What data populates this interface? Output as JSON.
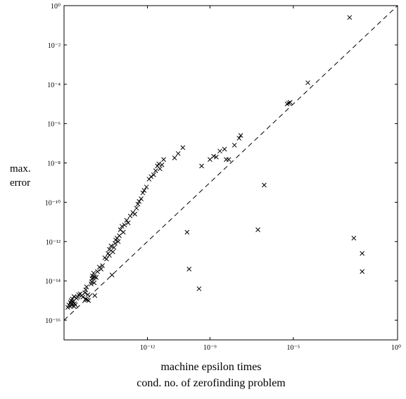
{
  "chart_data": {
    "type": "scatter",
    "title": "",
    "xlabel": [
      "machine epsilon times",
      "cond. no. of zerofinding problem"
    ],
    "ylabel": [
      "max.",
      "error"
    ],
    "xscale": "log",
    "yscale": "log",
    "xlim": [
      1e-16,
      1
    ],
    "ylim": [
      1e-17,
      1
    ],
    "grid": false,
    "legend": "none",
    "xticks": [
      {
        "value": 1e-12,
        "label": "10⁻¹²"
      },
      {
        "value": 1e-09,
        "label": "10⁻⁹"
      },
      {
        "value": 1e-05,
        "label": "10⁻⁵"
      },
      {
        "value": 1,
        "label": "10⁰"
      }
    ],
    "yticks": [
      {
        "value": 1,
        "label": "10⁰"
      },
      {
        "value": 0.01,
        "label": "10⁻²"
      },
      {
        "value": 0.0001,
        "label": "10⁻⁴"
      },
      {
        "value": 1e-06,
        "label": "10⁻⁶"
      },
      {
        "value": 1e-08,
        "label": "10⁻⁸"
      },
      {
        "value": 1e-10,
        "label": "10⁻¹⁰"
      },
      {
        "value": 1e-12,
        "label": "10⁻¹²"
      },
      {
        "value": 1e-14,
        "label": "10⁻¹⁴"
      },
      {
        "value": 1e-16,
        "label": "10⁻¹⁶"
      }
    ],
    "reference_line": {
      "style": "dashed",
      "x": [
        1e-16,
        1
      ],
      "y": [
        1e-16,
        1
      ]
    },
    "marker": "x",
    "color": "#000000",
    "points": [
      [
        1.5e-16,
        4.5e-16
      ],
      [
        1.7e-16,
        6e-16
      ],
      [
        2e-16,
        5e-16
      ],
      [
        2e-16,
        8e-16
      ],
      [
        2.2e-16,
        6e-16
      ],
      [
        2.2e-16,
        1e-15
      ],
      [
        2.5e-16,
        7e-16
      ],
      [
        2.5e-16,
        1.2e-15
      ],
      [
        2.7e-16,
        9e-16
      ],
      [
        3e-16,
        5e-16
      ],
      [
        3e-16,
        1.6e-15
      ],
      [
        3.2e-16,
        7e-16
      ],
      [
        3.5e-16,
        6e-16
      ],
      [
        4e-16,
        1.3e-15
      ],
      [
        4.5e-16,
        1.5e-15
      ],
      [
        5e-16,
        2e-15
      ],
      [
        6e-16,
        2.2e-15
      ],
      [
        7e-16,
        1.8e-15
      ],
      [
        8e-16,
        1.5e-15
      ],
      [
        1e-15,
        2.5e-15
      ],
      [
        1.1e-15,
        3.5e-15
      ],
      [
        1.1e-15,
        1.2e-15
      ],
      [
        1.2e-15,
        5e-15
      ],
      [
        1.3e-15,
        1.1e-15
      ],
      [
        1.4e-15,
        2e-15
      ],
      [
        1.5e-15,
        1e-15
      ],
      [
        2e-15,
        7e-15
      ],
      [
        2.1e-15,
        9e-15
      ],
      [
        2.2e-15,
        1.3e-14
      ],
      [
        2.3e-15,
        1.8e-14
      ],
      [
        2.5e-15,
        1.4e-14
      ],
      [
        2.6e-15,
        2.5e-14
      ],
      [
        2.8e-15,
        8e-15
      ],
      [
        2.9e-15,
        1.6e-14
      ],
      [
        3e-15,
        1.8e-15
      ],
      [
        3.5e-15,
        1.5e-14
      ],
      [
        4e-15,
        3e-14
      ],
      [
        5e-15,
        5e-14
      ],
      [
        6e-15,
        4e-14
      ],
      [
        7e-15,
        6e-14
      ],
      [
        9e-15,
        1.5e-13
      ],
      [
        1.1e-14,
        1.3e-13
      ],
      [
        1.3e-14,
        2.5e-13
      ],
      [
        1.5e-14,
        2e-13
      ],
      [
        1.5e-14,
        4e-13
      ],
      [
        1.8e-14,
        6e-13
      ],
      [
        2e-14,
        2e-14
      ],
      [
        2.2e-14,
        3e-13
      ],
      [
        2.5e-14,
        5e-13
      ],
      [
        2.8e-14,
        8e-13
      ],
      [
        3e-14,
        1.2e-12
      ],
      [
        3.5e-14,
        1.5e-12
      ],
      [
        4e-14,
        1e-12
      ],
      [
        4.5e-14,
        2e-12
      ],
      [
        5e-14,
        4e-12
      ],
      [
        6e-14,
        6e-12
      ],
      [
        7e-14,
        3e-12
      ],
      [
        8e-14,
        7e-12
      ],
      [
        1e-13,
        1.2e-11
      ],
      [
        1.2e-13,
        9e-12
      ],
      [
        1.5e-13,
        2e-11
      ],
      [
        2e-13,
        3e-11
      ],
      [
        2.5e-13,
        2.5e-11
      ],
      [
        3e-13,
        5e-11
      ],
      [
        3.5e-13,
        8e-11
      ],
      [
        4e-13,
        1.1e-10
      ],
      [
        5e-13,
        1.5e-10
      ],
      [
        6e-13,
        3e-10
      ],
      [
        7e-13,
        4e-10
      ],
      [
        9e-13,
        6e-10
      ],
      [
        1.2e-12,
        1.5e-09
      ],
      [
        1.5e-12,
        2e-09
      ],
      [
        2e-12,
        2.5e-09
      ],
      [
        2.5e-12,
        4e-09
      ],
      [
        3e-12,
        7e-09
      ],
      [
        3.5e-12,
        9e-09
      ],
      [
        4e-12,
        5e-09
      ],
      [
        5e-12,
        8e-09
      ],
      [
        6e-12,
        1.5e-08
      ],
      [
        2e-11,
        1.8e-08
      ],
      [
        3e-11,
        3e-08
      ],
      [
        5e-11,
        6e-08
      ],
      [
        1e-10,
        4e-14
      ],
      [
        8e-11,
        3e-12
      ],
      [
        3e-10,
        4e-15
      ],
      [
        4e-10,
        7e-09
      ],
      [
        1e-09,
        1.5e-08
      ],
      [
        1.5e-09,
        2.2e-08
      ],
      [
        2e-09,
        2e-08
      ],
      [
        3e-09,
        4e-08
      ],
      [
        5e-09,
        5e-08
      ],
      [
        6e-09,
        1.5e-08
      ],
      [
        1.5e-08,
        8e-08
      ],
      [
        3e-08,
        2.5e-07
      ],
      [
        8e-09,
        1.5e-08
      ],
      [
        2.5e-08,
        1.8e-07
      ],
      [
        2e-07,
        4e-12
      ],
      [
        4e-07,
        7.5e-10
      ],
      [
        5e-06,
        1e-05
      ],
      [
        6e-06,
        1.1e-05
      ],
      [
        7e-06,
        1.2e-05
      ],
      [
        5e-05,
        0.00012
      ],
      [
        0.005,
        0.25
      ],
      [
        0.008,
        1.5e-12
      ],
      [
        0.02,
        3e-14
      ],
      [
        0.02,
        2.5e-13
      ]
    ]
  }
}
